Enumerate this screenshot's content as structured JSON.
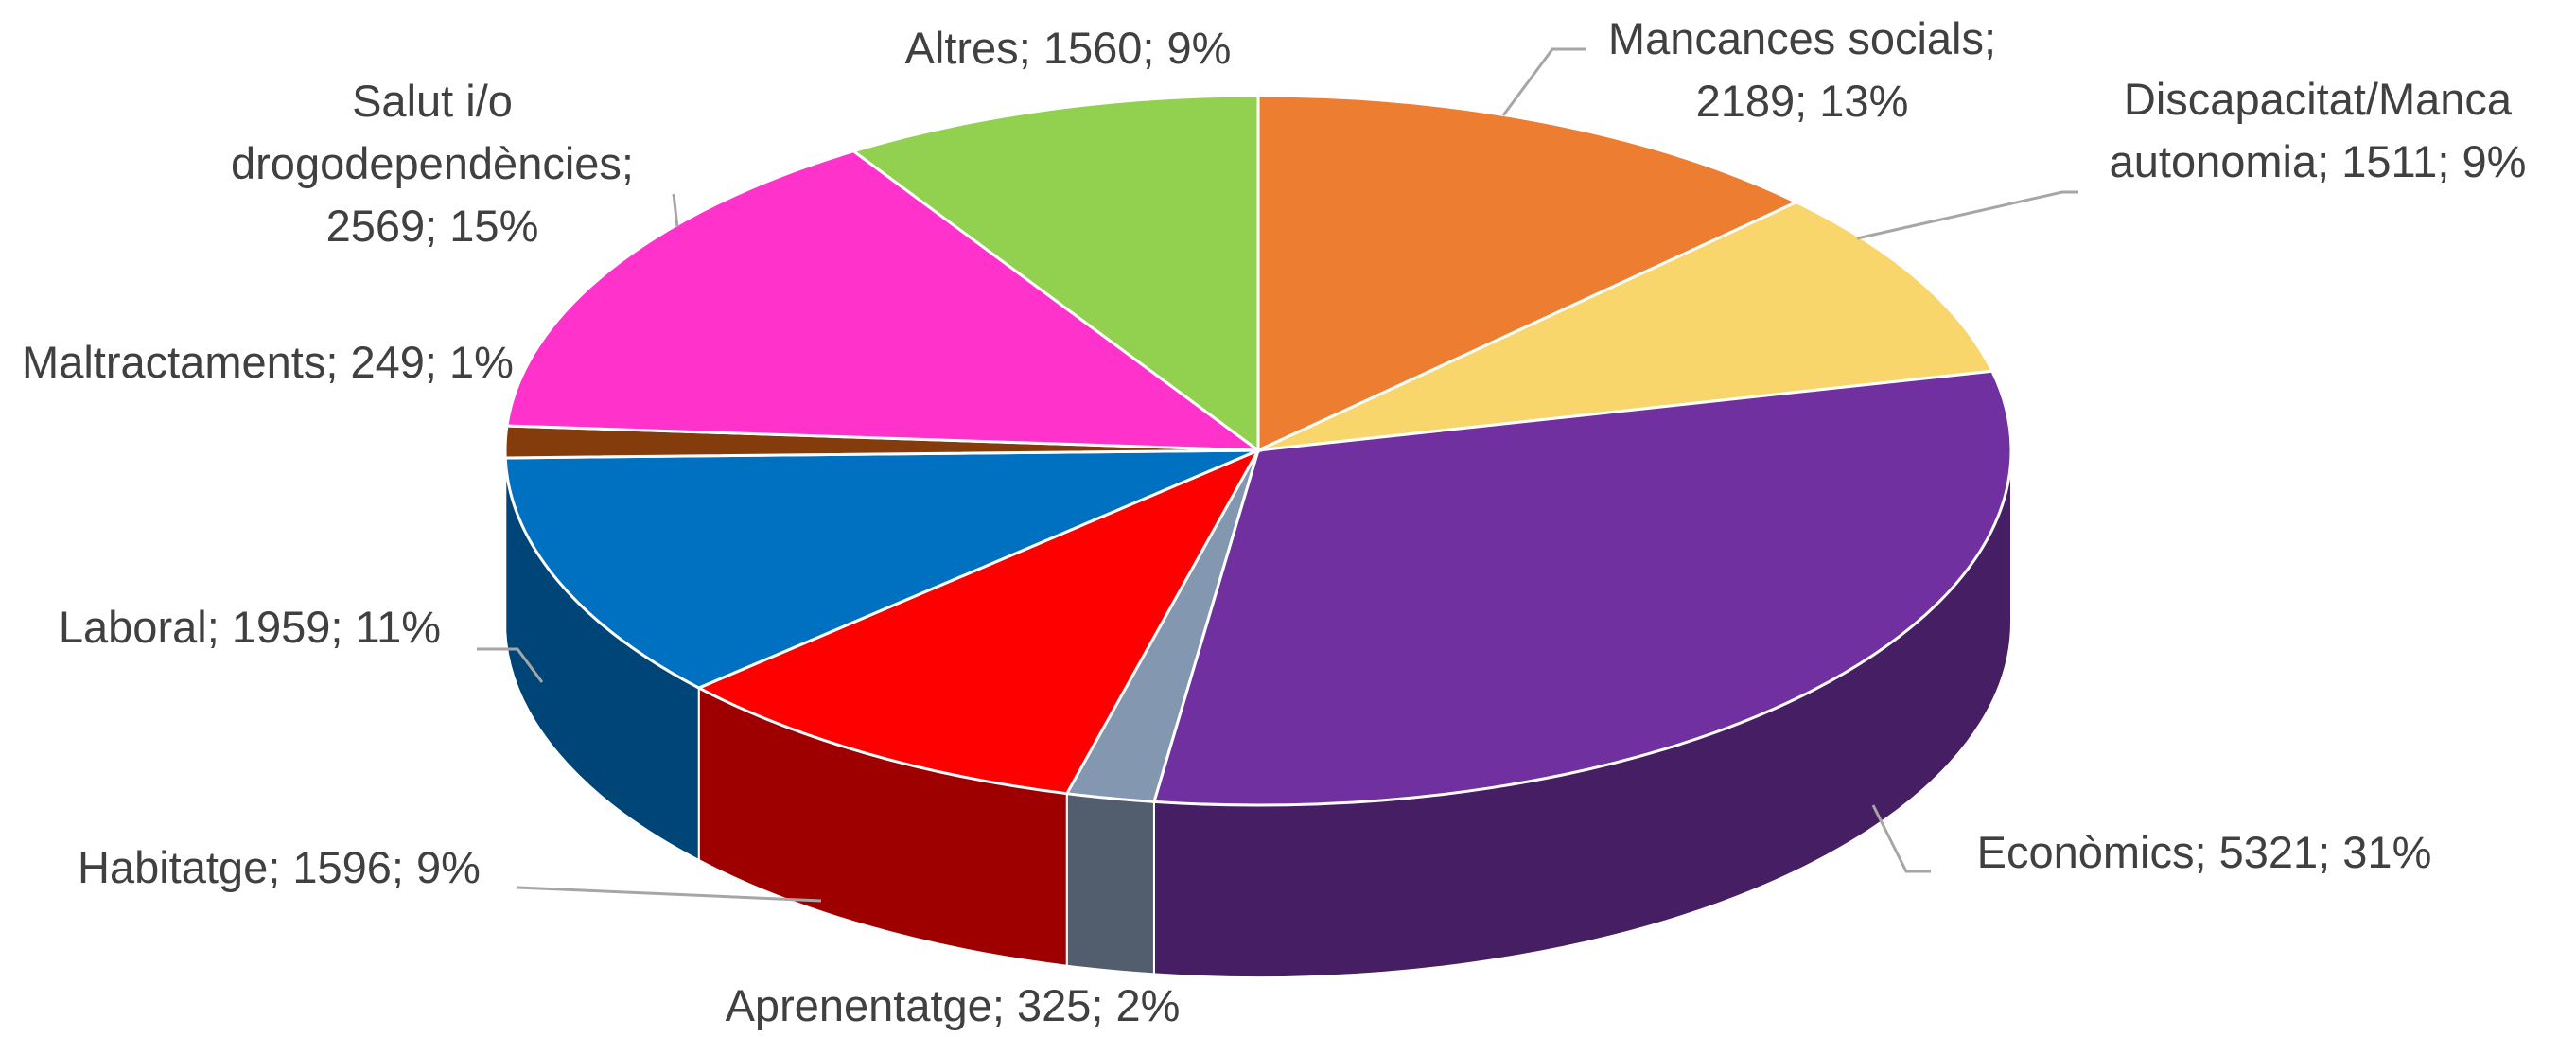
{
  "chart_data": {
    "type": "pie3d",
    "categories": [
      "Mancances socials",
      "Discapacitat/Manca autonomia",
      "Econòmics",
      "Aprenentatge",
      "Habitatge",
      "Laboral",
      "Maltractaments",
      "Salut i/o drogodependències",
      "Altres"
    ],
    "values": [
      2189,
      1511,
      5321,
      325,
      1596,
      1959,
      249,
      2569,
      1560
    ],
    "percent_labels": [
      "13%",
      "9%",
      "31%",
      "2%",
      "9%",
      "11%",
      "1%",
      "15%",
      "9%"
    ],
    "separator": "; ",
    "colors": [
      "#ED7D31",
      "#F9D66B",
      "#7030A0",
      "#8497B0",
      "#FF0000",
      "#0070C0",
      "#843C0C",
      "#FF33CC",
      "#92D050"
    ]
  }
}
